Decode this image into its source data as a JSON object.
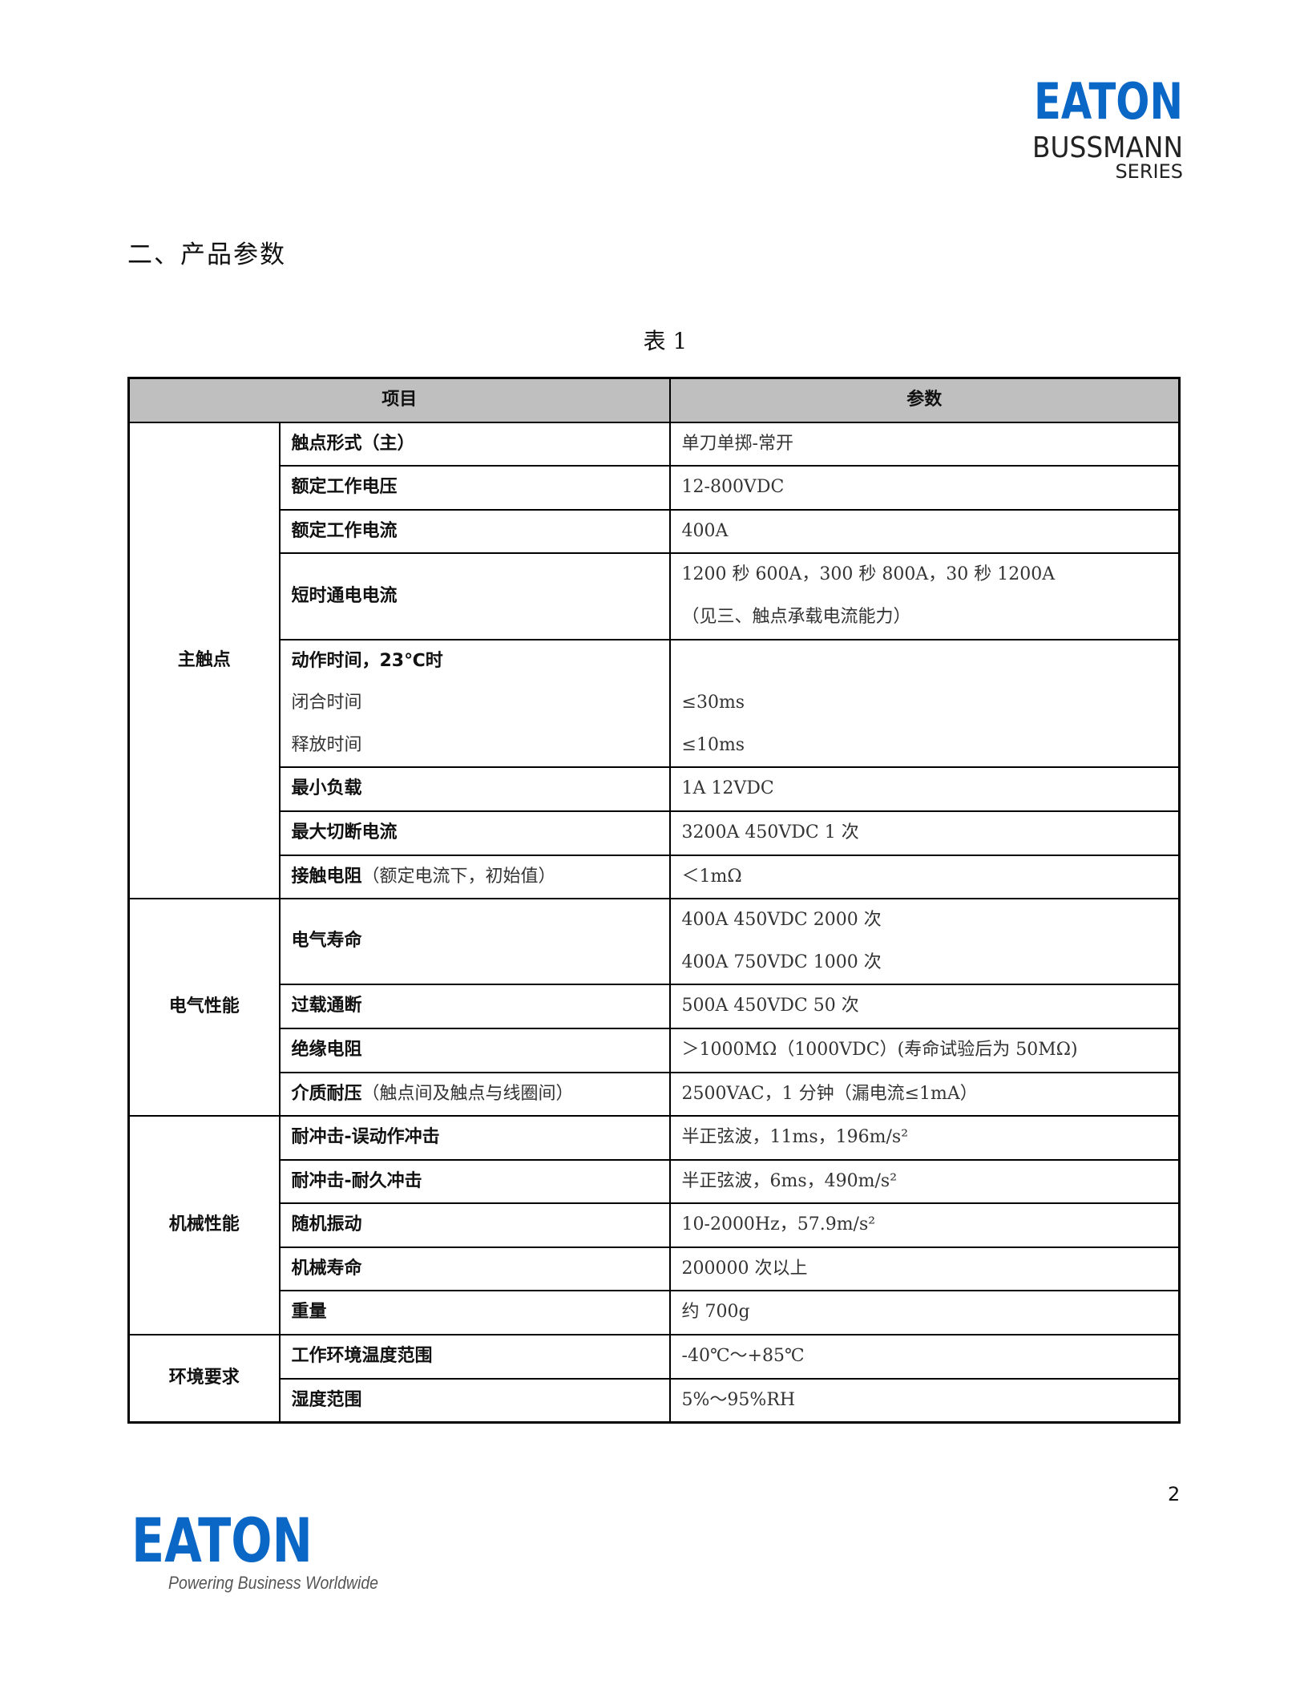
{
  "brand": {
    "logo_text": "EATON",
    "sub_brand": "BUSSMANN",
    "series": "SERIES",
    "tagline": "Powering Business Worldwide",
    "brand_color": "#0a67c6"
  },
  "heading": "二、产品参数",
  "caption": "表 1",
  "table": {
    "headers": [
      "项目",
      "参数"
    ],
    "groups": [
      {
        "category": "主触点",
        "rows": [
          {
            "label": [
              {
                "t": "触点形式（主）",
                "b": true
              }
            ],
            "values": [
              "单刀单掷-常开"
            ]
          },
          {
            "label": [
              {
                "t": "额定工作电压",
                "b": true
              }
            ],
            "values": [
              "12-800VDC"
            ]
          },
          {
            "label": [
              {
                "t": "额定工作电流",
                "b": true
              }
            ],
            "values": [
              "400A"
            ]
          },
          {
            "label": [
              {
                "t": "短时通电电流",
                "b": true
              }
            ],
            "values": [
              "1200 秒 600A，300 秒 800A，30 秒 1200A",
              "（见三、触点承载电流能力）"
            ],
            "center_label": true
          },
          {
            "label": [
              {
                "t": "动作时间，23℃时",
                "b": true
              }
            ],
            "sublabels": [
              "闭合时间",
              "释放时间"
            ],
            "values": [
              "",
              "≤30ms",
              "≤10ms"
            ]
          },
          {
            "label": [
              {
                "t": "最小负载",
                "b": true
              }
            ],
            "values": [
              "1A  12VDC"
            ]
          },
          {
            "label": [
              {
                "t": "最大切断电流",
                "b": true
              }
            ],
            "values": [
              "3200A   450VDC   1 次"
            ]
          },
          {
            "label": [
              {
                "t": "接触电阻",
                "b": true
              },
              {
                "t": "（额定电流下，初始值）",
                "b": false
              }
            ],
            "values": [
              "＜1mΩ"
            ]
          }
        ]
      },
      {
        "category": "电气性能",
        "rows": [
          {
            "label": [
              {
                "t": "电气寿命",
                "b": true
              }
            ],
            "values": [
              "400A   450VDC   2000 次",
              "400A   750VDC   1000 次"
            ],
            "center_label": true
          },
          {
            "label": [
              {
                "t": "过载通断",
                "b": true
              }
            ],
            "values": [
              "500A   450VDC   50 次"
            ]
          },
          {
            "label": [
              {
                "t": "绝缘电阻",
                "b": true
              }
            ],
            "values": [
              "＞1000MΩ（1000VDC）(寿命试验后为 50MΩ)"
            ]
          },
          {
            "label": [
              {
                "t": "介质耐压",
                "b": true
              },
              {
                "t": "（触点间及触点与线圈间）",
                "b": false
              }
            ],
            "values": [
              "2500VAC，1 分钟（漏电流≤1mA）"
            ]
          }
        ]
      },
      {
        "category": "机械性能",
        "rows": [
          {
            "label": [
              {
                "t": "耐冲击-误动作冲击",
                "b": true
              }
            ],
            "values": [
              "半正弦波，11ms，196m/s²"
            ]
          },
          {
            "label": [
              {
                "t": "耐冲击-耐久冲击",
                "b": true
              }
            ],
            "values": [
              "半正弦波，6ms，490m/s²"
            ]
          },
          {
            "label": [
              {
                "t": "随机振动",
                "b": true
              }
            ],
            "values": [
              "10-2000Hz，57.9m/s²"
            ]
          },
          {
            "label": [
              {
                "t": "机械寿命",
                "b": true
              }
            ],
            "values": [
              "200000 次以上"
            ]
          },
          {
            "label": [
              {
                "t": "重量",
                "b": true
              }
            ],
            "values": [
              "约 700g"
            ]
          }
        ]
      },
      {
        "category": "环境要求",
        "rows": [
          {
            "label": [
              {
                "t": "工作环境温度范围",
                "b": true
              }
            ],
            "values": [
              "-40℃～+85℃"
            ]
          },
          {
            "label": [
              {
                "t": "湿度范围",
                "b": true
              }
            ],
            "values": [
              "5%～95%RH"
            ]
          }
        ]
      }
    ]
  },
  "page_number": "2"
}
